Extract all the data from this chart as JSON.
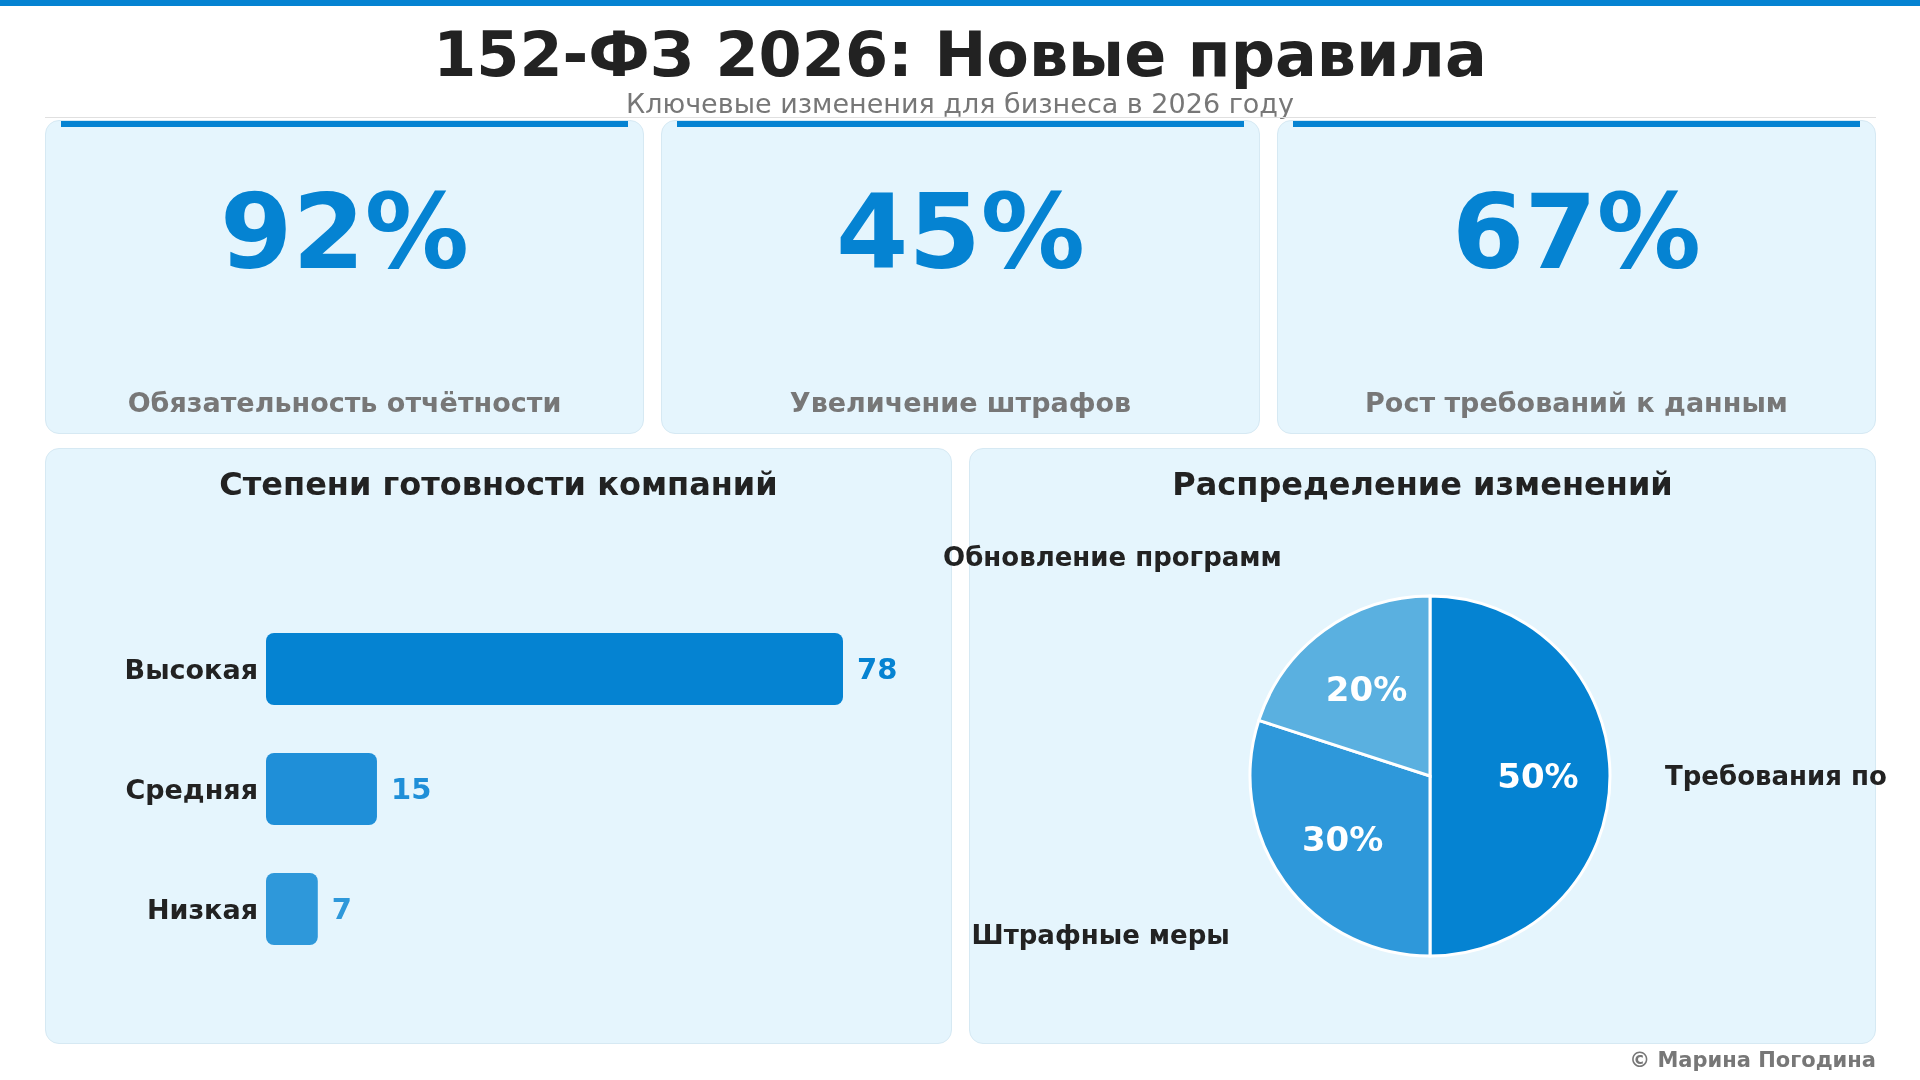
{
  "chart_data": [
    {
      "type": "other",
      "title": "152-ФЗ 2026: Новые правила",
      "subtitle": "Ключевые изменения для бизнеса в 2026 году",
      "annotations": [
        "© Марина Погодина"
      ],
      "color": "#0583d2"
    },
    {
      "type": "other",
      "categories": [
        "Обязательность отчётности"
      ],
      "values": [
        92
      ],
      "value_labels": [
        "92%"
      ]
    },
    {
      "type": "other",
      "categories": [
        "Увеличение штрафов"
      ],
      "values": [
        45
      ],
      "value_labels": [
        "45%"
      ]
    },
    {
      "type": "other",
      "categories": [
        "Рост требований к данным"
      ],
      "values": [
        67
      ],
      "value_labels": [
        "67%"
      ]
    },
    {
      "type": "bar",
      "orientation": "horizontal",
      "title": "Степени готовности компаний",
      "categories": [
        "Высокая",
        "Средняя",
        "Низкая"
      ],
      "values": [
        78,
        15,
        7
      ],
      "colors": [
        "#0583d2",
        "#1f8fd8",
        "#2e98da"
      ],
      "data_labels": true
    },
    {
      "type": "pie",
      "title": "Распределение изменений",
      "categories": [
        "Требования по",
        "Штрафные меры",
        "Обновление программ"
      ],
      "values": [
        50,
        30,
        20
      ],
      "value_labels": [
        "50%",
        "30%",
        "20%"
      ],
      "colors": [
        "#0583d2",
        "#2e98da",
        "#5ab0e0"
      ]
    }
  ]
}
